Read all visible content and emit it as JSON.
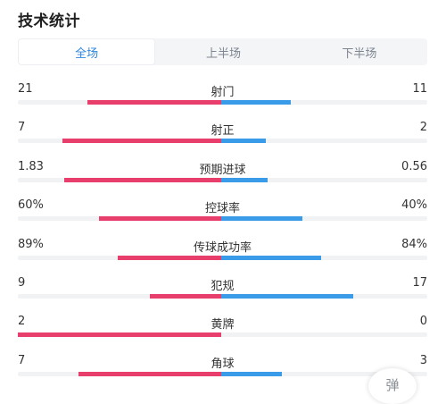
{
  "header": {
    "title": "技术统计"
  },
  "tabs": [
    {
      "label": "全场",
      "active": true
    },
    {
      "label": "上半场",
      "active": false
    },
    {
      "label": "下半场",
      "active": false
    }
  ],
  "colors": {
    "home": "#e83e6c",
    "away": "#3a9ce8",
    "tab_active": "#2e86de"
  },
  "stats": [
    {
      "label": "射门",
      "left": "21",
      "right": "11",
      "left_share": 0.66,
      "right_share": 0.34
    },
    {
      "label": "射正",
      "left": "7",
      "right": "2",
      "left_share": 0.78,
      "right_share": 0.22
    },
    {
      "label": "预期进球",
      "left": "1.83",
      "right": "0.56",
      "left_share": 0.77,
      "right_share": 0.23
    },
    {
      "label": "控球率",
      "left": "60%",
      "right": "40%",
      "left_share": 0.6,
      "right_share": 0.4
    },
    {
      "label": "传球成功率",
      "left": "89%",
      "right": "84%",
      "left_share": 0.51,
      "right_share": 0.49
    },
    {
      "label": "犯规",
      "left": "9",
      "right": "17",
      "left_share": 0.35,
      "right_share": 0.65
    },
    {
      "label": "黄牌",
      "left": "2",
      "right": "0",
      "left_share": 1.0,
      "right_share": 0.0
    },
    {
      "label": "角球",
      "left": "7",
      "right": "3",
      "left_share": 0.7,
      "right_share": 0.3
    }
  ],
  "float_button": {
    "label": "弹"
  }
}
